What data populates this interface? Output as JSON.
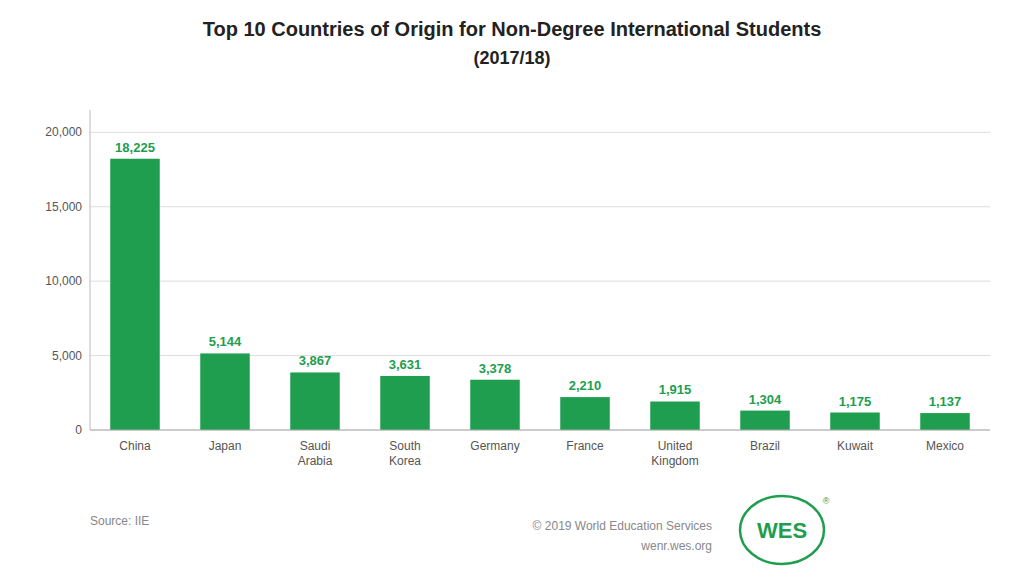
{
  "chart_data": {
    "type": "bar",
    "title": "Top 10 Countries of Origin for Non-Degree International Students",
    "subtitle": "(2017/18)",
    "categories": [
      "China",
      "Japan",
      "Saudi\nArabia",
      "South\nKorea",
      "Germany",
      "France",
      "United\nKingdom",
      "Brazil",
      "Kuwait",
      "Mexico"
    ],
    "values": [
      18225,
      5144,
      3867,
      3631,
      3378,
      2210,
      1915,
      1304,
      1175,
      1137
    ],
    "value_labels": [
      "18,225",
      "5,144",
      "3,867",
      "3,631",
      "3,378",
      "2,210",
      "1,915",
      "1,304",
      "1,175",
      "1,137"
    ],
    "data_labels": true,
    "color": "#1e9e4e",
    "ylim": [
      0,
      21500
    ],
    "yticks": [
      0,
      {
        "value": 5000,
        "label": "5,000"
      },
      {
        "value": 10000,
        "label": "10,000"
      },
      {
        "value": 15000,
        "label": "15,000"
      },
      {
        "value": 20000,
        "label": "20,000"
      }
    ],
    "grid": true,
    "annotations": [
      "Source: IIE",
      "© 2019 World Education Services",
      "wenr.wes.org",
      "WES",
      "®"
    ]
  }
}
